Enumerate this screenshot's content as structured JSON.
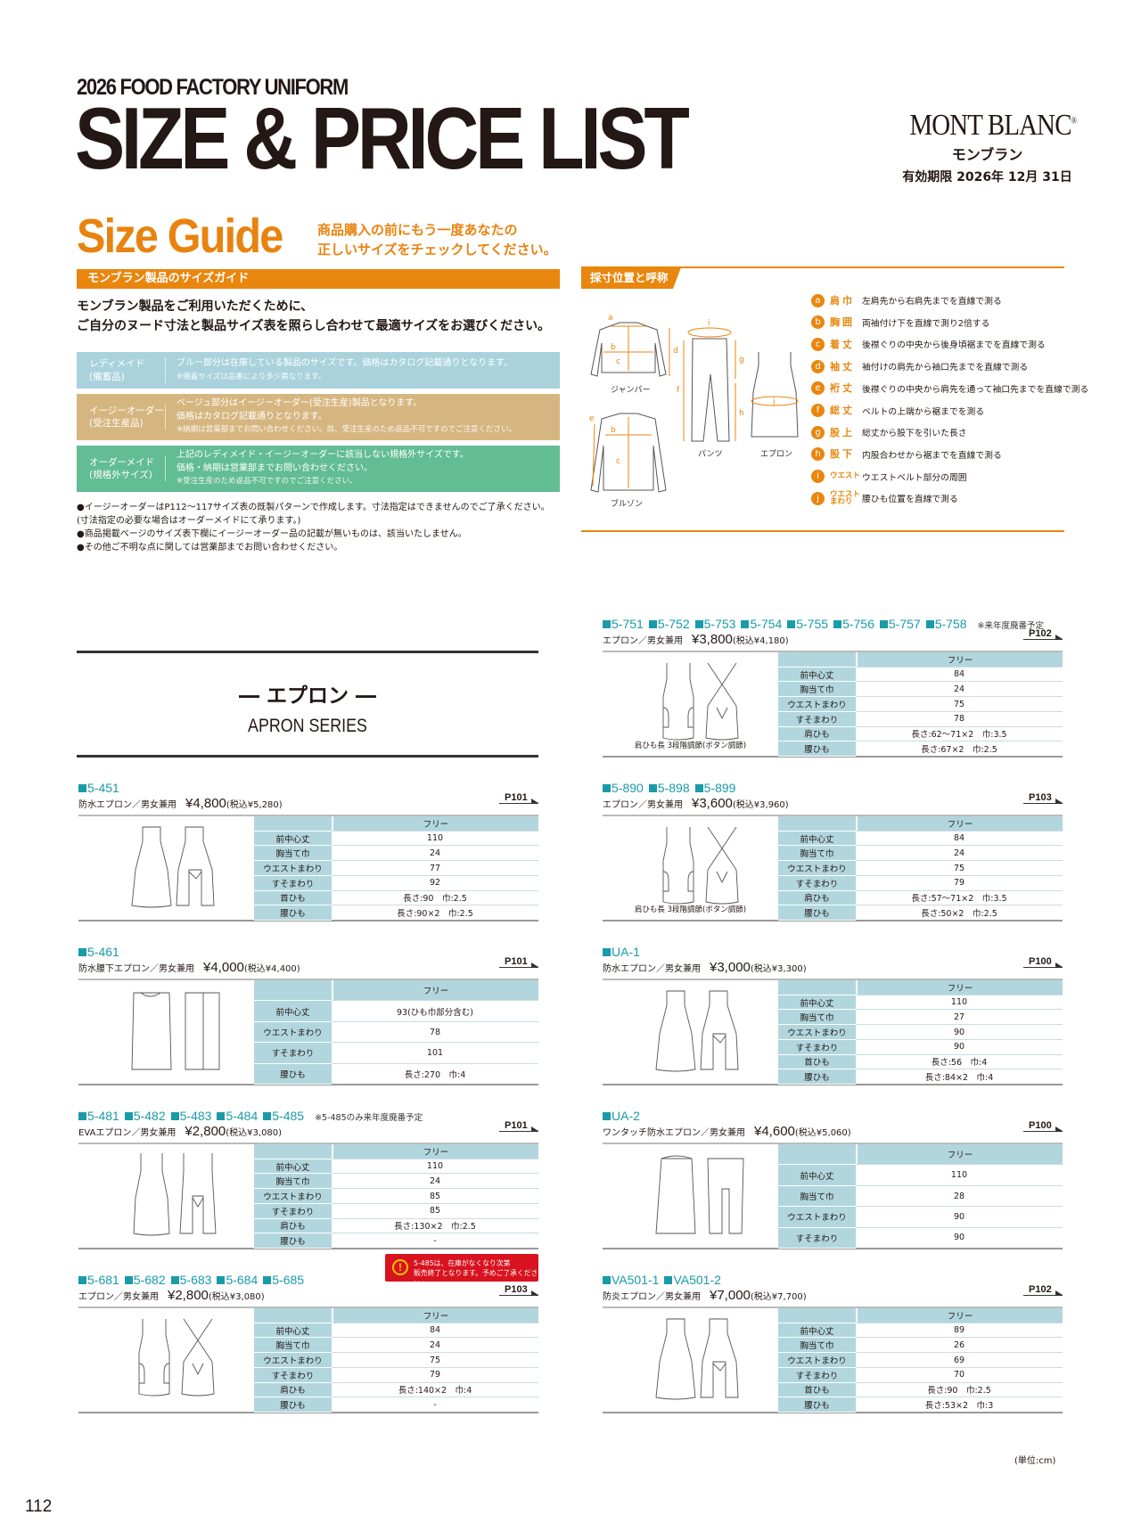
{
  "header": {
    "subtitle": "2026 FOOD FACTORY UNIFORM",
    "title": "SIZE & PRICE LIST"
  },
  "brand": {
    "logo": "MONT BLANC",
    "registered": "®",
    "kana": "モンブラン",
    "valid": "有効期限 2026年 12月 31日"
  },
  "size_guide": {
    "title": "Size Guide",
    "sub1": "商品購入の前にもう一度あなたの",
    "sub2": "正しいサイズをチェックしてください。",
    "bar": "モンブラン製品のサイズガイド",
    "lead1": "モンブラン製品をご利用いただくために、",
    "lead2": "ご自分のヌード寸法と製品サイズ表を照らし合わせて最適サイズをお選びください。",
    "categories": [
      {
        "label1": "レディメイド",
        "label2": "(備蓄品)",
        "lines": [
          "ブルー部分は在庫している製品のサイズです。価格はカタログ記載通りとなります。"
        ],
        "small": "※備蓄サイズは品番により多少異なります。",
        "color": "#A9D2DC"
      },
      {
        "label1": "イージーオーダー",
        "label2": "(受注生産品)",
        "lines": [
          "ベージュ部分はイージーオーダー(受注生産)製品となります。",
          "価格はカタログ記載通りとなります。"
        ],
        "small": "※納期は営業部までお問い合わせください。尚、受注生産のため返品不可ですのでご注意ください。",
        "color": "#D6B680"
      },
      {
        "label1": "オーダーメイド",
        "label2": "(規格外サイズ)",
        "lines": [
          "上記のレディメイド・イージーオーダーに該当しない規格外サイズです。",
          "価格・納期は営業部までお問い合わせください。"
        ],
        "small": "※受注生産のため返品不可ですのでご注意ください。",
        "color": "#62BC94"
      }
    ],
    "notes": [
      "●イージーオーダーはP112〜117サイズ表の既製パターンで作成します。寸法指定はできませんのでご了承ください。",
      "(寸法指定の必要な場合はオーダーメイドにて承ります。)",
      "●商品掲載ページのサイズ表下欄にイージーオーダー品の記載が無いものは、該当いたしません。",
      "●その他ご不明な点に関しては営業部までお問い合わせください。"
    ]
  },
  "measure": {
    "tab": "採寸位置と呼称",
    "diagram_labels": {
      "jumper": "ジャンパー",
      "blouson": "ブルゾン",
      "pants": "パンツ",
      "apron": "エプロン"
    },
    "legend": [
      {
        "letter": "a",
        "term": "肩巾",
        "desc": "左肩先から右肩先までを直線で測る"
      },
      {
        "letter": "b",
        "term": "胸囲",
        "desc": "両袖付け下を直線で測り2倍する"
      },
      {
        "letter": "c",
        "term": "着丈",
        "desc": "後襟ぐりの中央から後身頃裾までを直線で測る"
      },
      {
        "letter": "d",
        "term": "袖丈",
        "desc": "袖付けの肩先から袖口先までを直線で測る"
      },
      {
        "letter": "e",
        "term": "裄丈",
        "desc": "後襟ぐりの中央から肩先を通って袖口先までを直線で測る"
      },
      {
        "letter": "f",
        "term": "総丈",
        "desc": "ベルトの上端から裾までを測る"
      },
      {
        "letter": "g",
        "term": "股上",
        "desc": "総丈から股下を引いた長さ"
      },
      {
        "letter": "h",
        "term": "股下",
        "desc": "内股合わせから裾までを直線で測る"
      },
      {
        "letter": "i",
        "term": "ウエスト",
        "desc": "ウエストベルト部分の周囲"
      },
      {
        "letter": "j",
        "term": "ウエストまわり",
        "desc": "腰ひも位置を直線で測る"
      }
    ]
  },
  "series": {
    "jp": "― エプロン ―",
    "en": "APRON SERIES"
  },
  "size_header": "フリー",
  "products": [
    {
      "codes": [
        "5-451"
      ],
      "name": "防水エプロン／男女兼用",
      "price": "¥4,800",
      "tax": "(税込¥5,280)",
      "page": "P101",
      "illus": "bib",
      "rows": [
        [
          "前中心丈",
          "110"
        ],
        [
          "胸当て巾",
          "24"
        ],
        [
          "ウエストまわり",
          "77"
        ],
        [
          "すそまわり",
          "92"
        ],
        [
          "首ひも",
          "長さ:90　巾:2.5"
        ],
        [
          "腰ひも",
          "長さ:90×2　巾:2.5"
        ]
      ]
    },
    {
      "codes": [
        "5-461"
      ],
      "name": "防水腰下エプロン／男女兼用",
      "price": "¥4,000",
      "tax": "(税込¥4,400)",
      "page": "P101",
      "illus": "waist",
      "rows": [
        [
          "前中心丈",
          "93(ひも巾部分含む)"
        ],
        [
          "ウエストまわり",
          "78"
        ],
        [
          "すそまわり",
          "101"
        ],
        [
          "腰ひも",
          "長さ:270　巾:4"
        ]
      ]
    },
    {
      "codes": [
        "5-481",
        "5-482",
        "5-483",
        "5-484",
        "5-485"
      ],
      "note": "※5-485のみ来年度廃番予定",
      "name": "EVAエプロン／男女兼用",
      "price": "¥2,800",
      "tax": "(税込¥3,080)",
      "page": "P101",
      "illus": "strap",
      "rows": [
        [
          "前中心丈",
          "110"
        ],
        [
          "胸当て巾",
          "24"
        ],
        [
          "ウエストまわり",
          "85"
        ],
        [
          "すそまわり",
          "85"
        ],
        [
          "肩ひも",
          "長さ:130×2　巾:2.5"
        ],
        [
          "腰ひも",
          "-"
        ]
      ]
    },
    {
      "codes": [
        "5-681",
        "5-682",
        "5-683",
        "5-684",
        "5-685"
      ],
      "name": "エプロン／男女兼用",
      "price": "¥2,800",
      "tax": "(税込¥3,080)",
      "page": "P103",
      "illus": "cross",
      "rows": [
        [
          "前中心丈",
          "84"
        ],
        [
          "胸当て巾",
          "24"
        ],
        [
          "ウエストまわり",
          "75"
        ],
        [
          "すそまわり",
          "79"
        ],
        [
          "肩ひも",
          "長さ:140×2　巾:4"
        ],
        [
          "腰ひも",
          "-"
        ]
      ]
    },
    {
      "codes": [
        "5-751",
        "5-752",
        "5-753",
        "5-754",
        "5-755",
        "5-756",
        "5-757",
        "5-758"
      ],
      "note": "※来年度廃番予定",
      "name": "エプロン／男女兼用",
      "price": "¥3,800",
      "tax": "(税込¥4,180)",
      "page": "P102",
      "illus": "cross",
      "caption": "肩ひも長 3段階調節(ボタン調節)",
      "rows": [
        [
          "前中心丈",
          "84"
        ],
        [
          "胸当て巾",
          "24"
        ],
        [
          "ウエストまわり",
          "75"
        ],
        [
          "すそまわり",
          "78"
        ],
        [
          "肩ひも",
          "長さ:62〜71×2　巾:3.5"
        ],
        [
          "腰ひも",
          "長さ:67×2　巾:2.5"
        ]
      ]
    },
    {
      "codes": [
        "5-890",
        "5-898",
        "5-899"
      ],
      "name": "エプロン／男女兼用",
      "price": "¥3,600",
      "tax": "(税込¥3,960)",
      "page": "P103",
      "illus": "cross",
      "caption": "肩ひも長 3段階調節(ボタン調節)",
      "rows": [
        [
          "前中心丈",
          "84"
        ],
        [
          "胸当て巾",
          "24"
        ],
        [
          "ウエストまわり",
          "75"
        ],
        [
          "すそまわり",
          "79"
        ],
        [
          "肩ひも",
          "長さ:57〜71×2　巾:3.5"
        ],
        [
          "腰ひも",
          "長さ:50×2　巾:2.5"
        ]
      ]
    },
    {
      "codes": [
        "UA-1"
      ],
      "name": "防水エプロン／男女兼用",
      "price": "¥3,000",
      "tax": "(税込¥3,300)",
      "page": "P100",
      "illus": "bib",
      "rows": [
        [
          "前中心丈",
          "110"
        ],
        [
          "胸当て巾",
          "27"
        ],
        [
          "ウエストまわり",
          "90"
        ],
        [
          "すそまわり",
          "90"
        ],
        [
          "首ひも",
          "長さ:56　巾:4"
        ],
        [
          "腰ひも",
          "長さ:84×2　巾:4"
        ]
      ]
    },
    {
      "codes": [
        "UA-2"
      ],
      "name": "ワンタッチ防水エプロン／男女兼用",
      "price": "¥4,600",
      "tax": "(税込¥5,060)",
      "page": "P100",
      "illus": "onetouch",
      "rows": [
        [
          "前中心丈",
          "110"
        ],
        [
          "胸当て巾",
          "28"
        ],
        [
          "ウエストまわり",
          "90"
        ],
        [
          "すそまわり",
          "90"
        ]
      ]
    },
    {
      "codes": [
        "VA501-1",
        "VA501-2"
      ],
      "name": "防炎エプロン／男女兼用",
      "price": "¥7,000",
      "tax": "(税込¥7,700)",
      "page": "P102",
      "illus": "bib",
      "rows": [
        [
          "前中心丈",
          "89"
        ],
        [
          "胸当て巾",
          "26"
        ],
        [
          "ウエストまわり",
          "69"
        ],
        [
          "すそまわり",
          "70"
        ],
        [
          "首ひも",
          "長さ:90　巾:2.5"
        ],
        [
          "腰ひも",
          "長さ:53×2　巾:3"
        ]
      ]
    }
  ],
  "warning": {
    "line1": "5-485は、在庫がなくなり次第",
    "line2": "販売終了となります。予めご了承ください。",
    "icon": "exclamation-circle-icon"
  },
  "unit": "(単位:cm)",
  "page_number": "112",
  "colors": {
    "orange": "#E9860E",
    "teal": "#1A9BA8",
    "table_blue": "#B2D6DE",
    "warning_red": "#D8121F"
  }
}
